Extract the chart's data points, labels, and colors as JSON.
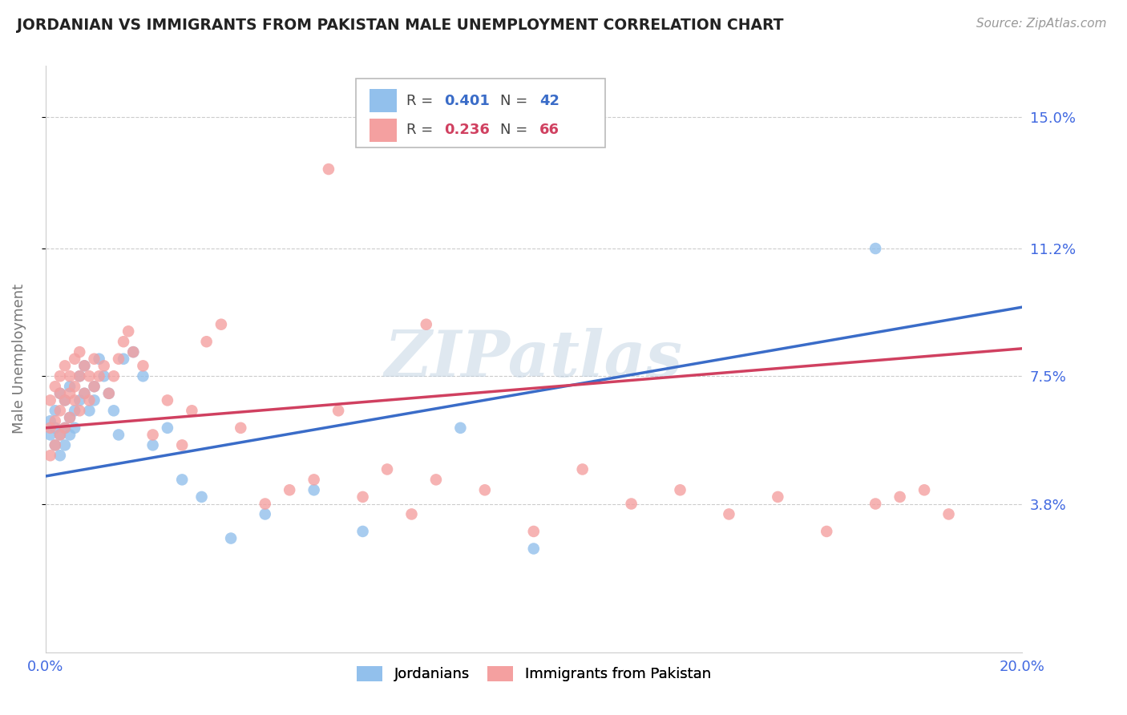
{
  "title": "JORDANIAN VS IMMIGRANTS FROM PAKISTAN MALE UNEMPLOYMENT CORRELATION CHART",
  "source": "Source: ZipAtlas.com",
  "ylabel": "Male Unemployment",
  "watermark": "ZIPatlas",
  "xlim": [
    0.0,
    0.2
  ],
  "ylim": [
    -0.005,
    0.165
  ],
  "ytick_values": [
    0.038,
    0.075,
    0.112,
    0.15
  ],
  "ytick_labels": [
    "3.8%",
    "7.5%",
    "11.2%",
    "15.0%"
  ],
  "blue_color": "#92C0EC",
  "pink_color": "#F4A0A0",
  "blue_line_color": "#3A6CC8",
  "pink_line_color": "#D04060",
  "legend_blue_label": "Jordanians",
  "legend_pink_label": "Immigrants from Pakistan",
  "r_blue": "0.401",
  "n_blue": "42",
  "r_pink": "0.236",
  "n_pink": "66",
  "blue_x": [
    0.001,
    0.001,
    0.002,
    0.002,
    0.002,
    0.003,
    0.003,
    0.003,
    0.004,
    0.004,
    0.004,
    0.005,
    0.005,
    0.005,
    0.006,
    0.006,
    0.007,
    0.007,
    0.008,
    0.008,
    0.009,
    0.01,
    0.01,
    0.011,
    0.012,
    0.013,
    0.014,
    0.015,
    0.016,
    0.018,
    0.02,
    0.022,
    0.025,
    0.028,
    0.032,
    0.038,
    0.045,
    0.055,
    0.065,
    0.085,
    0.1,
    0.17
  ],
  "blue_y": [
    0.058,
    0.062,
    0.055,
    0.06,
    0.065,
    0.052,
    0.058,
    0.07,
    0.06,
    0.055,
    0.068,
    0.058,
    0.063,
    0.072,
    0.06,
    0.065,
    0.075,
    0.068,
    0.07,
    0.078,
    0.065,
    0.072,
    0.068,
    0.08,
    0.075,
    0.07,
    0.065,
    0.058,
    0.08,
    0.082,
    0.075,
    0.055,
    0.06,
    0.045,
    0.04,
    0.028,
    0.035,
    0.042,
    0.03,
    0.06,
    0.025,
    0.112
  ],
  "pink_x": [
    0.001,
    0.001,
    0.001,
    0.002,
    0.002,
    0.002,
    0.003,
    0.003,
    0.003,
    0.003,
    0.004,
    0.004,
    0.004,
    0.005,
    0.005,
    0.005,
    0.006,
    0.006,
    0.006,
    0.007,
    0.007,
    0.007,
    0.008,
    0.008,
    0.009,
    0.009,
    0.01,
    0.01,
    0.011,
    0.012,
    0.013,
    0.014,
    0.015,
    0.016,
    0.017,
    0.018,
    0.02,
    0.022,
    0.025,
    0.028,
    0.03,
    0.033,
    0.036,
    0.04,
    0.045,
    0.05,
    0.055,
    0.06,
    0.065,
    0.07,
    0.075,
    0.08,
    0.09,
    0.1,
    0.11,
    0.12,
    0.13,
    0.14,
    0.15,
    0.16,
    0.17,
    0.175,
    0.18,
    0.185,
    0.078,
    0.058
  ],
  "pink_y": [
    0.052,
    0.06,
    0.068,
    0.055,
    0.062,
    0.072,
    0.058,
    0.065,
    0.07,
    0.075,
    0.06,
    0.068,
    0.078,
    0.063,
    0.07,
    0.075,
    0.068,
    0.072,
    0.08,
    0.065,
    0.075,
    0.082,
    0.07,
    0.078,
    0.068,
    0.075,
    0.072,
    0.08,
    0.075,
    0.078,
    0.07,
    0.075,
    0.08,
    0.085,
    0.088,
    0.082,
    0.078,
    0.058,
    0.068,
    0.055,
    0.065,
    0.085,
    0.09,
    0.06,
    0.038,
    0.042,
    0.045,
    0.065,
    0.04,
    0.048,
    0.035,
    0.045,
    0.042,
    0.03,
    0.048,
    0.038,
    0.042,
    0.035,
    0.04,
    0.03,
    0.038,
    0.04,
    0.042,
    0.035,
    0.09,
    0.135
  ],
  "bg_color": "#FFFFFF",
  "grid_color": "#CCCCCC",
  "title_color": "#222222",
  "axis_label_color": "#777777",
  "tick_color": "#4169E1"
}
